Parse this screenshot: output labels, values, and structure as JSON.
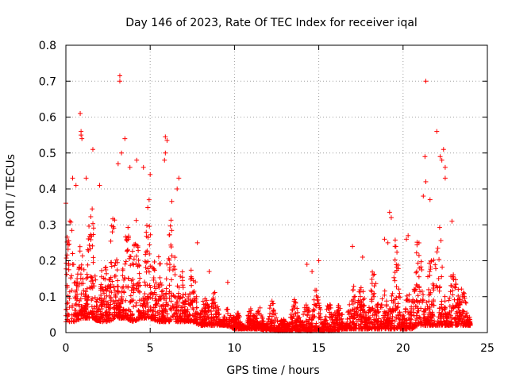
{
  "chart_data": {
    "type": "scatter",
    "title": "Day 146 of 2023, Rate Of TEC Index for receiver iqal",
    "xlabel": "GPS time / hours",
    "ylabel": "ROTI / TECUs",
    "xlim": [
      0,
      25
    ],
    "ylim": [
      0,
      0.8
    ],
    "x_ticks": [
      0,
      5,
      10,
      15,
      20,
      25
    ],
    "y_ticks": [
      0,
      0.1,
      0.2,
      0.3,
      0.4,
      0.5,
      0.6,
      0.7,
      0.8
    ],
    "x_tick_labels": [
      "0",
      "5",
      "10",
      "15",
      "20",
      "25"
    ],
    "y_tick_labels": [
      "0",
      "0.1",
      "0.2",
      "0.3",
      "0.4",
      "0.5",
      "0.6",
      "0.7",
      "0.8"
    ],
    "grid": true,
    "marker": "+",
    "color": "#ff0000",
    "series": [
      {
        "name": "ROTI",
        "envelope": {
          "x": [
            0,
            0.5,
            1,
            1.5,
            2,
            2.5,
            3,
            3.5,
            4,
            4.5,
            5,
            5.5,
            6,
            6.5,
            7,
            7.5,
            8,
            8.5,
            9,
            9.5,
            10,
            10.5,
            11,
            11.5,
            12,
            12.5,
            13,
            13.5,
            14,
            14.5,
            15,
            15.5,
            16,
            16.5,
            17,
            17.5,
            18,
            18.5,
            19,
            19.5,
            20,
            20.5,
            21,
            21.5,
            22,
            22.5,
            23,
            23.5,
            24
          ],
          "typical_max": [
            0.3,
            0.34,
            0.38,
            0.33,
            0.28,
            0.3,
            0.38,
            0.36,
            0.33,
            0.4,
            0.38,
            0.32,
            0.36,
            0.34,
            0.25,
            0.17,
            0.15,
            0.12,
            0.1,
            0.08,
            0.06,
            0.06,
            0.07,
            0.09,
            0.09,
            0.07,
            0.06,
            0.08,
            0.12,
            0.12,
            0.13,
            0.12,
            0.08,
            0.1,
            0.15,
            0.18,
            0.2,
            0.16,
            0.18,
            0.24,
            0.14,
            0.18,
            0.3,
            0.33,
            0.34,
            0.3,
            0.22,
            0.17,
            0.15
          ],
          "typical_min": [
            0.03,
            0.03,
            0.04,
            0.04,
            0.03,
            0.03,
            0.04,
            0.04,
            0.03,
            0.04,
            0.04,
            0.03,
            0.03,
            0.03,
            0.03,
            0.03,
            0.02,
            0.02,
            0.02,
            0.02,
            0.01,
            0.01,
            0.01,
            0.01,
            0.005,
            0.005,
            0.005,
            0.005,
            0.005,
            0.005,
            0.005,
            0.005,
            0.005,
            0.01,
            0.01,
            0.01,
            0.01,
            0.01,
            0.01,
            0.01,
            0.01,
            0.01,
            0.02,
            0.02,
            0.02,
            0.02,
            0.02,
            0.02,
            0.02
          ]
        },
        "outliers": [
          {
            "x": 0.0,
            "y": 0.36
          },
          {
            "x": 0.4,
            "y": 0.43
          },
          {
            "x": 0.6,
            "y": 0.41
          },
          {
            "x": 0.85,
            "y": 0.61
          },
          {
            "x": 0.9,
            "y": 0.56
          },
          {
            "x": 0.9,
            "y": 0.55
          },
          {
            "x": 0.95,
            "y": 0.54
          },
          {
            "x": 1.6,
            "y": 0.51
          },
          {
            "x": 1.2,
            "y": 0.43
          },
          {
            "x": 2.0,
            "y": 0.41
          },
          {
            "x": 3.2,
            "y": 0.715
          },
          {
            "x": 3.2,
            "y": 0.7
          },
          {
            "x": 3.5,
            "y": 0.54
          },
          {
            "x": 3.3,
            "y": 0.5
          },
          {
            "x": 3.1,
            "y": 0.47
          },
          {
            "x": 3.8,
            "y": 0.46
          },
          {
            "x": 4.2,
            "y": 0.48
          },
          {
            "x": 4.6,
            "y": 0.46
          },
          {
            "x": 5.0,
            "y": 0.44
          },
          {
            "x": 5.9,
            "y": 0.545
          },
          {
            "x": 6.0,
            "y": 0.535
          },
          {
            "x": 5.9,
            "y": 0.5
          },
          {
            "x": 5.85,
            "y": 0.48
          },
          {
            "x": 6.7,
            "y": 0.43
          },
          {
            "x": 6.6,
            "y": 0.4
          },
          {
            "x": 7.8,
            "y": 0.25
          },
          {
            "x": 8.5,
            "y": 0.17
          },
          {
            "x": 9.6,
            "y": 0.14
          },
          {
            "x": 14.3,
            "y": 0.19
          },
          {
            "x": 14.6,
            "y": 0.17
          },
          {
            "x": 15.0,
            "y": 0.2
          },
          {
            "x": 17.0,
            "y": 0.24
          },
          {
            "x": 17.6,
            "y": 0.21
          },
          {
            "x": 18.9,
            "y": 0.26
          },
          {
            "x": 19.2,
            "y": 0.335
          },
          {
            "x": 19.3,
            "y": 0.32
          },
          {
            "x": 19.1,
            "y": 0.25
          },
          {
            "x": 20.2,
            "y": 0.26
          },
          {
            "x": 20.3,
            "y": 0.27
          },
          {
            "x": 21.2,
            "y": 0.38
          },
          {
            "x": 21.3,
            "y": 0.49
          },
          {
            "x": 21.35,
            "y": 0.42
          },
          {
            "x": 21.35,
            "y": 0.7
          },
          {
            "x": 22.0,
            "y": 0.56
          },
          {
            "x": 22.2,
            "y": 0.49
          },
          {
            "x": 22.3,
            "y": 0.48
          },
          {
            "x": 22.4,
            "y": 0.51
          },
          {
            "x": 22.5,
            "y": 0.46
          },
          {
            "x": 22.5,
            "y": 0.43
          },
          {
            "x": 21.6,
            "y": 0.37
          },
          {
            "x": 22.9,
            "y": 0.31
          }
        ]
      }
    ]
  }
}
